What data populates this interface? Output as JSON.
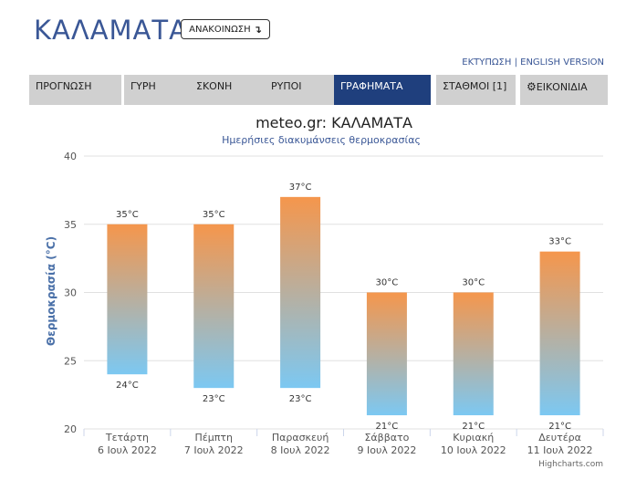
{
  "header": {
    "city": "ΚΑΛΑΜΑΤΑ",
    "refresh_label": "ΑΝΑΚΟΙΝΩΣΗ",
    "refresh_icon": "↴",
    "links": {
      "print": "ΕΚΤΥΠΩΣΗ",
      "separator": " | ",
      "english": "ENGLISH VERSION"
    }
  },
  "tabs": [
    {
      "label": "ΠΡΟΓΝΩΣΗ",
      "active": false
    },
    {
      "label": "ΓΥΡΗ",
      "active": false
    },
    {
      "label": "ΣΚΟΝΗ",
      "active": false
    },
    {
      "label": "ΡΥΠΟΙ",
      "active": false
    },
    {
      "label": "ΓΡΑΦΗΜΑΤΑ",
      "active": true
    },
    {
      "label": "ΣΤΑΘΜΟΙ [1]",
      "active": false
    },
    {
      "label": "ΕΙΚΟΝΙΔΙΑ",
      "active": false,
      "icon": "gear-icon"
    }
  ],
  "chart_data": {
    "type": "bar",
    "title": "meteo.gr: ΚΑΛΑΜΑΤΑ",
    "subtitle": "Ημερήσιες διακυμάνσεις θερμοκρασίας",
    "ylabel": "Θερμοκρασία (°C)",
    "xlabel": "",
    "ylim": [
      20,
      40
    ],
    "yticks": [
      20,
      25,
      30,
      35,
      40
    ],
    "grid": true,
    "categories": [
      [
        "Τετάρτη",
        "6 Ιουλ 2022"
      ],
      [
        "Πέμπτη",
        "7 Ιουλ 2022"
      ],
      [
        "Παρασκευή",
        "8 Ιουλ 2022"
      ],
      [
        "Σάββατο",
        "9 Ιουλ 2022"
      ],
      [
        "Κυριακή",
        "10 Ιουλ 2022"
      ],
      [
        "Δευτέρα",
        "11 Ιουλ 2022"
      ]
    ],
    "low": [
      24,
      23,
      23,
      21,
      21,
      21
    ],
    "high": [
      35,
      35,
      37,
      30,
      30,
      33
    ],
    "low_labels": [
      "24°C",
      "23°C",
      "23°C",
      "21°C",
      "21°C",
      "21°C"
    ],
    "high_labels": [
      "35°C",
      "35°C",
      "37°C",
      "30°C",
      "30°C",
      "33°C"
    ],
    "colors": {
      "warm": "#f5964c",
      "cool": "#7cc8f2",
      "grid": "#e0e0e0",
      "axis_text": "#555555",
      "ylabel": "#4a70a8"
    },
    "credits": "Highcharts.com"
  }
}
